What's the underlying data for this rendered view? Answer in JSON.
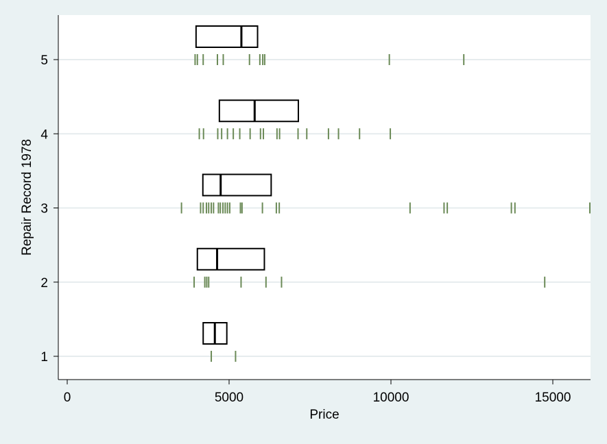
{
  "chart_data": {
    "type": "box-strip",
    "title": "",
    "xlabel": "Price",
    "ylabel": "Repair Record 1978",
    "xlim": [
      0,
      16200
    ],
    "xticks": [
      0,
      5000,
      10000,
      15000
    ],
    "ylim": [
      0.55,
      5.55
    ],
    "yticks": [
      1,
      2,
      3,
      4,
      5
    ],
    "grid": "horizontal",
    "colors": {
      "background": "#eaf2f3",
      "plot_area": "#ffffff",
      "gridline": "#e6ecee",
      "box_stroke": "#000000",
      "strip_mark": "#6b8a57"
    },
    "groups": [
      {
        "category": 1,
        "box": {
          "q1": 4200,
          "median": 4560,
          "q3": 4930
        },
        "points": [
          4450,
          5200
        ]
      },
      {
        "category": 2,
        "box": {
          "q1": 4020,
          "median": 4630,
          "q3": 6090
        },
        "points": [
          3920,
          4250,
          4310,
          4370,
          5370,
          6140,
          6620,
          14750
        ]
      },
      {
        "category": 3,
        "box": {
          "q1": 4190,
          "median": 4740,
          "q3": 6300
        },
        "points": [
          3530,
          4120,
          4200,
          4300,
          4370,
          4450,
          4520,
          4670,
          4730,
          4810,
          4880,
          4950,
          5020,
          5350,
          5400,
          6030,
          6460,
          6550,
          10590,
          11640,
          11740,
          13720,
          13830,
          16200
        ]
      },
      {
        "category": 4,
        "box": {
          "q1": 4700,
          "median": 5790,
          "q3": 7140
        },
        "points": [
          4080,
          4210,
          4650,
          4770,
          4950,
          5130,
          5330,
          5650,
          5970,
          6060,
          6480,
          6560,
          7130,
          7400,
          8070,
          8380,
          9030,
          9980
        ]
      },
      {
        "category": 5,
        "box": {
          "q1": 3980,
          "median": 5380,
          "q3": 5880
        },
        "points": [
          3950,
          4020,
          4200,
          4640,
          4820,
          5630,
          5950,
          6040,
          6100,
          9950,
          12250
        ]
      }
    ]
  }
}
